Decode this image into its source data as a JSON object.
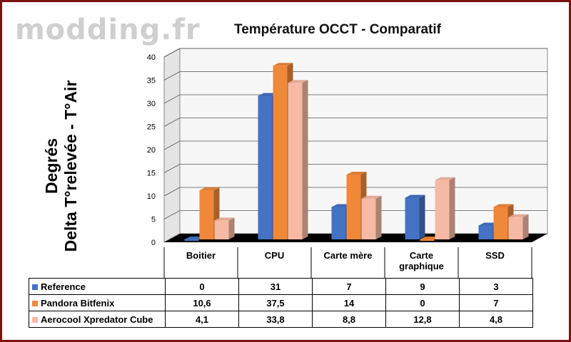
{
  "watermark": "modding.fr",
  "chart_data": {
    "type": "bar",
    "title": "Température OCCT - Comparatif",
    "ylabel_lines": [
      "Degrés",
      "Delta T°relevée - T°Air"
    ],
    "ylim": [
      0,
      40
    ],
    "yticks": [
      "0",
      "5",
      "10",
      "15",
      "20",
      "25",
      "30",
      "35",
      "40"
    ],
    "categories": [
      "Boitier",
      "CPU",
      "Carte mère",
      "Carte graphique",
      "SSD"
    ],
    "series": [
      {
        "name": "Reference",
        "color": "#4472c4",
        "values": [
          0,
          31,
          7,
          9,
          3
        ],
        "labels": [
          "0",
          "31",
          "7",
          "9",
          "3"
        ]
      },
      {
        "name": "Pandora Bitfenix",
        "color": "#f0883a",
        "values": [
          10.6,
          37.5,
          14,
          0,
          7
        ],
        "labels": [
          "10,6",
          "37,5",
          "14",
          "0",
          "7"
        ]
      },
      {
        "name": "Aerocool Xpredator Cube",
        "color": "#f6b9a3",
        "values": [
          4.1,
          33.8,
          8.8,
          12.8,
          4.8
        ],
        "labels": [
          "4,1",
          "33,8",
          "8,8",
          "12,8",
          "4,8"
        ]
      }
    ],
    "grid": true,
    "legend": "table-bottom"
  }
}
